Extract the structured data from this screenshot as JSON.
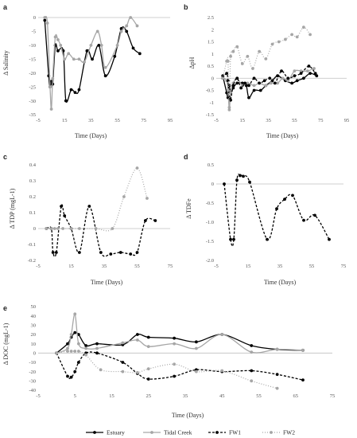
{
  "series_styles": [
    {
      "name": "Estuary",
      "color": "#000000",
      "dash": "",
      "width": 1.3
    },
    {
      "name": "Tidal Creek",
      "color": "#a6a6a6",
      "dash": "",
      "width": 1.3
    },
    {
      "name": "FW1",
      "color": "#000000",
      "dash": "3,2",
      "width": 1.3
    },
    {
      "name": "FW2",
      "color": "#a6a6a6",
      "dash": "1,2",
      "width": 1.2
    }
  ],
  "legend": [
    "Estuary",
    "Tidal Creek",
    "FW1",
    "FW2"
  ],
  "chart_data": [
    {
      "panel": "a",
      "type": "line",
      "xlabel": "Time (Days)",
      "ylabel": "Δ Salinity",
      "xlim": [
        -5,
        95
      ],
      "ylim": [
        -35,
        0
      ],
      "xticks": [
        -5,
        15,
        35,
        55,
        75,
        95
      ],
      "yticks": [
        0,
        -5,
        -10,
        -15,
        -20,
        -25,
        -30,
        -35
      ],
      "ytick_labels": [
        "0",
        "-5",
        "-10",
        "-15",
        "-20",
        "-25",
        "-30",
        "-35"
      ],
      "series": [
        {
          "name": "Estuary",
          "x": [
            0,
            3,
            4,
            5,
            6,
            8,
            10,
            14,
            16,
            20,
            23,
            26,
            32,
            36,
            41,
            46,
            53,
            58,
            62,
            67,
            72
          ],
          "y": [
            -1,
            -21,
            -25,
            -23,
            -24,
            -10,
            -12,
            -12,
            -30,
            -26,
            -27,
            -26,
            -12,
            -15,
            -10,
            -21,
            -14,
            -4,
            -5,
            -11,
            -13
          ]
        },
        {
          "name": "Tidal Creek",
          "x": [
            0,
            2,
            4,
            5,
            6,
            8,
            10,
            12,
            15,
            18,
            22,
            26,
            30,
            35,
            40,
            43,
            46,
            55,
            58,
            62,
            65,
            70
          ],
          "y": [
            0,
            -2,
            -25,
            -33,
            -22,
            -7,
            -8,
            -10,
            -15,
            -13,
            -15,
            -15,
            -16,
            -10,
            -5,
            -10,
            -18,
            -10,
            -5,
            -3,
            0,
            -3
          ]
        }
      ]
    },
    {
      "panel": "b",
      "type": "line",
      "xlabel": "Time (Days)",
      "ylabel": "ΔpH",
      "xlim": [
        -5,
        95
      ],
      "ylim": [
        -1.5,
        2.5
      ],
      "xticks": [
        -5,
        15,
        35,
        55,
        75,
        95
      ],
      "yticks": [
        2.5,
        2,
        1.5,
        1,
        0.5,
        0,
        -0.5,
        -1,
        -1.5
      ],
      "ytick_labels": [
        "2.5",
        "2",
        "1.5",
        "1",
        "0.5",
        "0",
        "-0.5",
        "-1",
        "-1.5"
      ],
      "series": [
        {
          "name": "Estuary",
          "x": [
            0,
            3,
            4,
            5,
            6,
            8,
            11,
            15,
            18,
            20,
            24,
            29,
            33,
            38,
            42,
            48,
            53,
            57,
            62,
            67,
            72
          ],
          "y": [
            0.1,
            -0.6,
            -0.8,
            -0.3,
            -0.6,
            -0.4,
            -0.2,
            -0.2,
            -0.3,
            -0.8,
            -0.5,
            -0.5,
            -0.3,
            -0.1,
            0.1,
            -0.1,
            -0.2,
            -0.1,
            0.0,
            0.2,
            0.1
          ]
        },
        {
          "name": "Tidal Creek",
          "x": [
            0,
            3,
            4,
            5,
            6,
            8,
            11,
            15,
            19,
            24,
            28,
            33,
            37,
            42,
            46,
            50,
            55,
            60,
            65,
            70
          ],
          "y": [
            0.0,
            -0.1,
            -0.5,
            -1.3,
            -0.6,
            -0.2,
            0.0,
            -0.3,
            -0.2,
            -0.3,
            -0.2,
            -0.3,
            -0.2,
            -0.2,
            0.0,
            -0.1,
            0.3,
            0.3,
            0.3,
            0.4
          ]
        },
        {
          "name": "FW1",
          "x": [
            0,
            3,
            4,
            5,
            6,
            8,
            11,
            14,
            17,
            20,
            24,
            28,
            32,
            36,
            40,
            45,
            50,
            55,
            60,
            66,
            71
          ],
          "y": [
            0.0,
            0.2,
            -0.1,
            -0.8,
            -0.9,
            -0.3,
            0.0,
            -0.4,
            -0.2,
            -0.3,
            0.0,
            -0.2,
            -0.1,
            0.0,
            -0.2,
            0.3,
            0.0,
            0.1,
            0.2,
            0.5,
            0.2
          ]
        },
        {
          "name": "FW2",
          "x": [
            0,
            3,
            4,
            5,
            6,
            8,
            11,
            15,
            19,
            23,
            28,
            33,
            38,
            43,
            48,
            53,
            57,
            62,
            67
          ],
          "y": [
            0.0,
            0.7,
            0.7,
            -1.2,
            0.9,
            1.1,
            1.3,
            0.6,
            0.9,
            0.4,
            1.1,
            0.8,
            1.4,
            1.5,
            1.6,
            1.8,
            1.7,
            2.1,
            1.8
          ]
        }
      ]
    },
    {
      "panel": "c",
      "type": "line",
      "xlabel": "Time (Days)",
      "ylabel": "Δ TDP (mgL-1)",
      "xlim": [
        -5,
        75
      ],
      "ylim": [
        -0.2,
        0.4
      ],
      "xticks": [
        -5,
        15,
        35,
        55,
        75
      ],
      "yticks": [
        0.4,
        0.3,
        0.2,
        0.1,
        0,
        -0.1,
        -0.2
      ],
      "ytick_labels": [
        "0.4",
        "0.3",
        "0.2",
        "0.1",
        "0",
        "-0.1",
        "-0.2"
      ],
      "series": [
        {
          "name": "FW1",
          "x": [
            0,
            3,
            4,
            6,
            9,
            11,
            15,
            20,
            26,
            33,
            39,
            45,
            51,
            55,
            60,
            66
          ],
          "y": [
            0,
            0,
            -0.15,
            -0.15,
            0.14,
            0.08,
            0.0,
            -0.15,
            0.14,
            -0.15,
            -0.16,
            -0.15,
            -0.16,
            -0.15,
            0.05,
            0.05
          ]
        },
        {
          "name": "FW2",
          "x": [
            0,
            3,
            5,
            7,
            10,
            15,
            20,
            30,
            40,
            47,
            55,
            61
          ],
          "y": [
            0,
            0,
            0,
            0,
            0,
            0,
            0,
            0,
            0,
            0.2,
            0.38,
            0.19
          ]
        }
      ]
    },
    {
      "panel": "d",
      "type": "line",
      "xlabel": "Time (Days)",
      "ylabel": "Δ TDFe",
      "xlim": [
        -5,
        75
      ],
      "ylim": [
        -2.0,
        0.5
      ],
      "xticks": [
        -5,
        15,
        35,
        55,
        75
      ],
      "yticks": [
        0.5,
        0,
        -0.5,
        -1,
        -1.5,
        -2
      ],
      "ytick_labels": [
        "0.5",
        "0",
        "-0.5",
        "-1.0",
        "-1.5",
        "-2.0"
      ],
      "series": [
        {
          "name": "FW1",
          "x": [
            0,
            4,
            6,
            8,
            10,
            12,
            16,
            27,
            33,
            38,
            43,
            50,
            57,
            66
          ],
          "y": [
            0.0,
            -1.45,
            -1.45,
            0.1,
            0.22,
            0.2,
            0.05,
            -1.45,
            -0.65,
            -0.4,
            -0.3,
            -0.95,
            -0.82,
            -1.45
          ]
        }
      ]
    },
    {
      "panel": "e",
      "type": "line",
      "xlabel": "Time (Days)",
      "ylabel": "Δ DOC (mgL-1)",
      "xlim": [
        -5,
        75
      ],
      "ylim": [
        -40,
        50
      ],
      "xticks": [
        -5,
        5,
        15,
        25,
        35,
        45,
        55,
        65,
        75
      ],
      "yticks": [
        50,
        40,
        30,
        20,
        10,
        0,
        -10,
        -20,
        -30,
        -40
      ],
      "ytick_labels": [
        "50",
        "40",
        "30",
        "20",
        "10",
        "0",
        "-10",
        "-20",
        "-30",
        "-40"
      ],
      "series": [
        {
          "name": "Estuary",
          "x": [
            0,
            3,
            4,
            5,
            6,
            8,
            11,
            18,
            22,
            25,
            32,
            38,
            45,
            53,
            60,
            67
          ],
          "y": [
            0,
            10,
            17,
            22,
            20,
            8,
            10,
            9,
            20,
            17,
            16,
            12,
            20,
            8,
            4,
            3
          ]
        },
        {
          "name": "Tidal Creek",
          "x": [
            0,
            3,
            4,
            5,
            6,
            8,
            11,
            18,
            22,
            25,
            32,
            38,
            45,
            53,
            60,
            67
          ],
          "y": [
            0,
            5,
            20,
            42,
            10,
            5,
            5,
            11,
            14,
            7,
            10,
            5,
            20,
            1,
            4,
            3
          ]
        },
        {
          "name": "FW1",
          "x": [
            0,
            3,
            4,
            5,
            6,
            8,
            11,
            18,
            22,
            25,
            32,
            38,
            45,
            53,
            60,
            67
          ],
          "y": [
            0,
            -25,
            -26,
            -20,
            -10,
            0,
            0,
            -10,
            -22,
            -28,
            -25,
            -18,
            -20,
            -19,
            -23,
            -29
          ]
        },
        {
          "name": "FW2",
          "x": [
            0,
            3,
            4,
            5,
            6,
            8,
            12,
            18,
            22,
            25,
            32,
            38,
            45,
            53,
            60
          ],
          "y": [
            0,
            2,
            2,
            2,
            2,
            -2,
            -18,
            -20,
            -21,
            -17,
            -12,
            -20,
            -19,
            -30,
            -38
          ]
        }
      ]
    }
  ]
}
